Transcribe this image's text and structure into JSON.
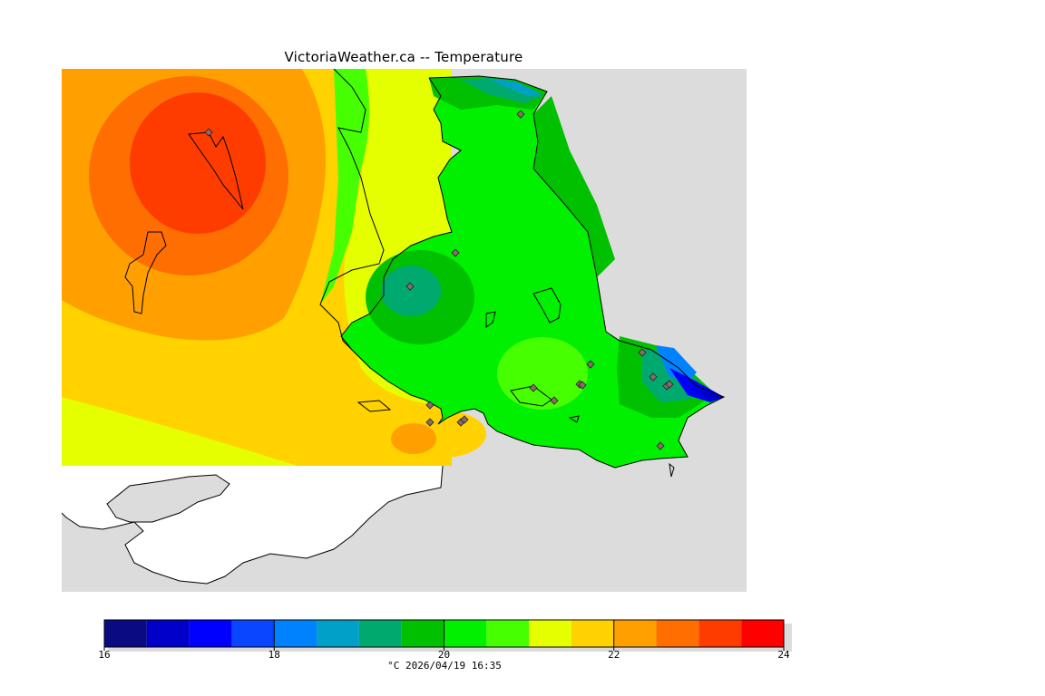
{
  "title": "VictoriaWeather.ca -- Temperature",
  "caption": "°C  2026/04/19 16:35",
  "colors": {
    "background": "#dcdcdc",
    "land_no_data": "#ffffff",
    "coastline": "#000000",
    "station_marker": "#8b6a6a"
  },
  "legend": {
    "min": 16,
    "max": 24,
    "tick_labels": [
      "16",
      "18",
      "20",
      "22",
      "24"
    ],
    "bins": [
      {
        "from": 16.0,
        "to": 16.5,
        "color": "#0a0a82"
      },
      {
        "from": 16.5,
        "to": 17.0,
        "color": "#0000c8"
      },
      {
        "from": 17.0,
        "to": 17.5,
        "color": "#0000ff"
      },
      {
        "from": 17.5,
        "to": 18.0,
        "color": "#0a46ff"
      },
      {
        "from": 18.0,
        "to": 18.5,
        "color": "#0082ff"
      },
      {
        "from": 18.5,
        "to": 19.0,
        "color": "#00a0c8"
      },
      {
        "from": 19.0,
        "to": 19.5,
        "color": "#00aa6e"
      },
      {
        "from": 19.5,
        "to": 20.0,
        "color": "#00c000"
      },
      {
        "from": 20.0,
        "to": 20.5,
        "color": "#00f000"
      },
      {
        "from": 20.5,
        "to": 21.0,
        "color": "#46ff00"
      },
      {
        "from": 21.0,
        "to": 21.5,
        "color": "#e6ff00"
      },
      {
        "from": 21.5,
        "to": 22.0,
        "color": "#ffd200"
      },
      {
        "from": 22.0,
        "to": 22.5,
        "color": "#ffa000"
      },
      {
        "from": 22.5,
        "to": 23.0,
        "color": "#ff6e00"
      },
      {
        "from": 23.0,
        "to": 23.5,
        "color": "#ff3c00"
      },
      {
        "from": 23.5,
        "to": 24.0,
        "color": "#ff0000"
      }
    ]
  },
  "stations_count": 18
}
